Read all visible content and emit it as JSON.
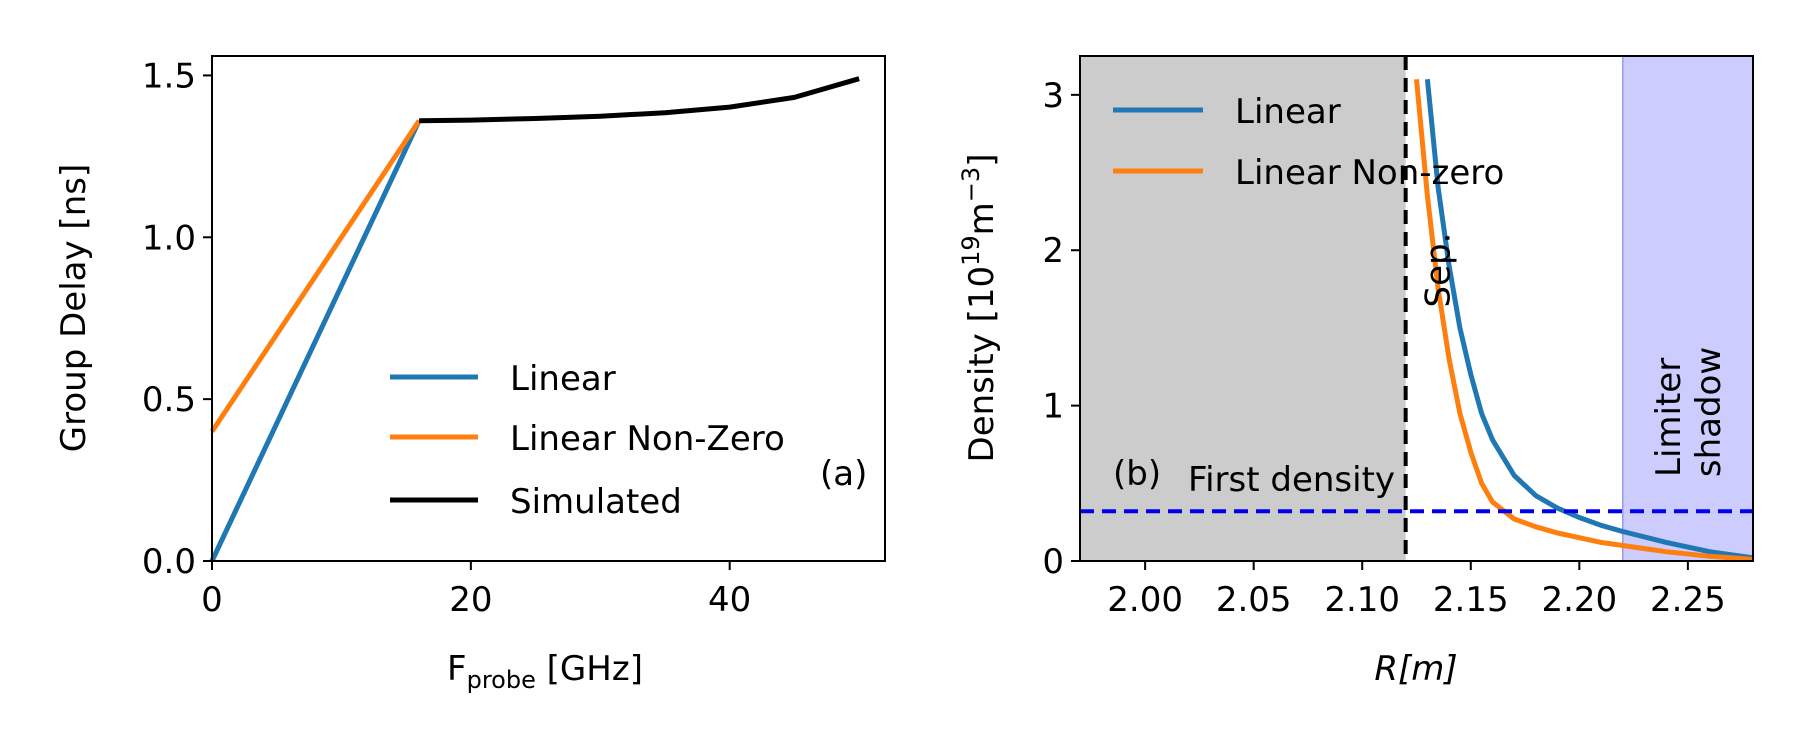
{
  "chart_data": [
    {
      "type": "line",
      "xlabel": "F",
      "xlabel_sub": "probe",
      "xlabel_unit": " [GHz]",
      "ylabel": "Group Delay [ns]",
      "xlim": [
        0,
        52
      ],
      "ylim": [
        0,
        1.56
      ],
      "xticks": [
        0,
        20,
        40
      ],
      "xtick_labels": [
        "0",
        "20",
        "40"
      ],
      "yticks": [
        0,
        0.5,
        1.0,
        1.5
      ],
      "ytick_labels": [
        "0.0",
        "0.5",
        "1.0",
        "1.5"
      ],
      "panel_label": "(a)",
      "legend_position": "lower-right",
      "series": [
        {
          "name": "Linear",
          "color": "#1f77b4",
          "x": [
            0,
            16
          ],
          "y": [
            0,
            1.36
          ]
        },
        {
          "name": "Linear Non-Zero",
          "color": "#ff7f0e",
          "x": [
            0,
            16
          ],
          "y": [
            0.4,
            1.36
          ]
        },
        {
          "name": "Simulated",
          "color": "#000000",
          "x": [
            16,
            20,
            25,
            30,
            35,
            40,
            45,
            50
          ],
          "y": [
            1.36,
            1.362,
            1.367,
            1.374,
            1.385,
            1.402,
            1.432,
            1.49
          ]
        }
      ]
    },
    {
      "type": "line",
      "xlabel": "R[m]",
      "ylabel": "Density [10",
      "ylabel_sup": "19",
      "ylabel_unit": "m",
      "ylabel_unit_sup": "−3",
      "ylabel_close": "]",
      "xlim": [
        1.97,
        2.28
      ],
      "ylim": [
        0,
        3.25
      ],
      "xticks": [
        2.0,
        2.05,
        2.1,
        2.15,
        2.2,
        2.25
      ],
      "xtick_labels": [
        "2.00",
        "2.05",
        "2.10",
        "2.15",
        "2.20",
        "2.25"
      ],
      "yticks": [
        0,
        1,
        2,
        3
      ],
      "ytick_labels": [
        "0",
        "1",
        "2",
        "3"
      ],
      "panel_label": "(b)",
      "legend_position": "upper-left",
      "shaded_region": {
        "x0": 1.97,
        "x1": 2.12,
        "color": "#cccccc"
      },
      "limiter_region": {
        "x0": 2.22,
        "x1": 2.28,
        "color": "#ccccff",
        "label_line1": "Limiter",
        "label_line2": "shadow"
      },
      "separatrix": {
        "x": 2.12,
        "label": "Sep."
      },
      "first_density": {
        "y": 0.32,
        "label": "First density",
        "color": "#0000ee"
      },
      "series": [
        {
          "name": "Linear",
          "color": "#1f77b4",
          "x": [
            2.13,
            2.135,
            2.14,
            2.145,
            2.15,
            2.155,
            2.16,
            2.17,
            2.18,
            2.19,
            2.2,
            2.21,
            2.22,
            2.24,
            2.26,
            2.28
          ],
          "y": [
            3.1,
            2.4,
            1.9,
            1.5,
            1.2,
            0.95,
            0.78,
            0.55,
            0.42,
            0.34,
            0.28,
            0.23,
            0.19,
            0.12,
            0.06,
            0.02
          ]
        },
        {
          "name": "Linear Non-zero",
          "color": "#ff7f0e",
          "x": [
            2.125,
            2.13,
            2.135,
            2.14,
            2.145,
            2.15,
            2.155,
            2.16,
            2.17,
            2.18,
            2.19,
            2.2,
            2.21,
            2.22,
            2.24,
            2.26,
            2.28
          ],
          "y": [
            3.1,
            2.35,
            1.75,
            1.3,
            0.95,
            0.7,
            0.5,
            0.38,
            0.27,
            0.22,
            0.18,
            0.15,
            0.12,
            0.1,
            0.06,
            0.03,
            0.01
          ]
        }
      ]
    }
  ]
}
